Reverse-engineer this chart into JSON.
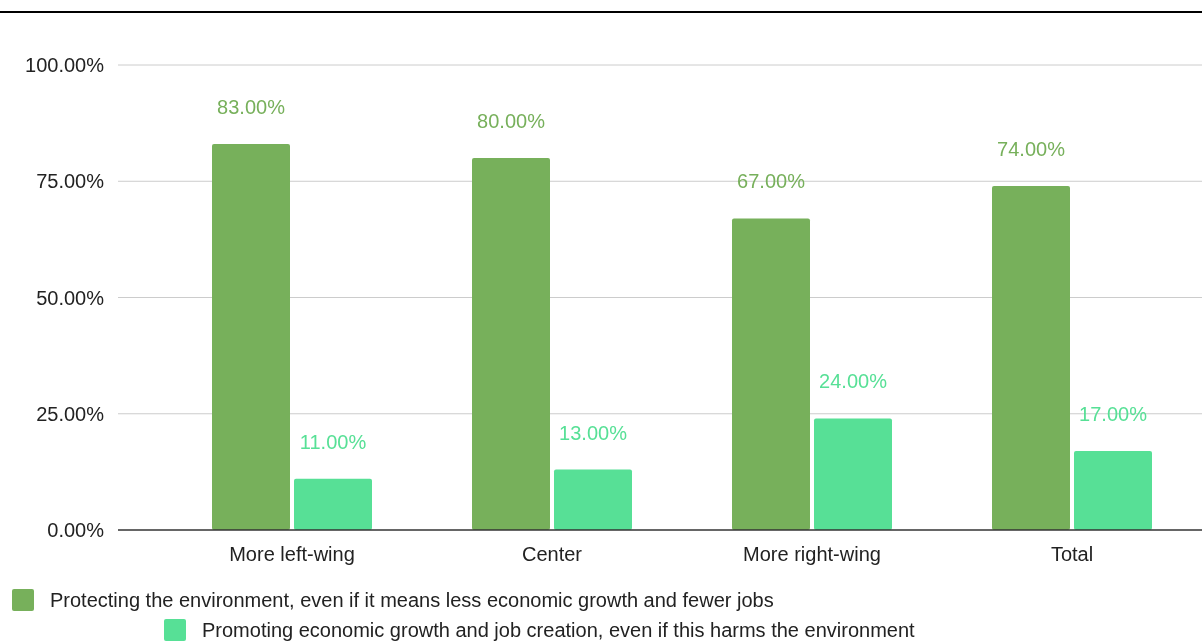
{
  "chart_data": {
    "type": "bar",
    "categories": [
      "More left-wing",
      "Center",
      "More right-wing",
      "Total"
    ],
    "series": [
      {
        "name": "Protecting the environment, even if it means less economic growth and fewer jobs",
        "color": "#77b05b",
        "values": [
          83,
          80,
          67,
          74
        ],
        "value_labels": [
          "83.00%",
          "80.00%",
          "67.00%",
          "74.00%"
        ]
      },
      {
        "name": "Promoting economic growth and job creation, even if this harms the environment",
        "color": "#57e096",
        "values": [
          11,
          13,
          24,
          17
        ],
        "value_labels": [
          "11.00%",
          "13.00%",
          "24.00%",
          "17.00%"
        ]
      }
    ],
    "ylim": [
      0,
      100
    ],
    "yticks": [
      {
        "value": 0,
        "label": "0.00%"
      },
      {
        "value": 25,
        "label": "25.00%"
      },
      {
        "value": 50,
        "label": "50.00%"
      },
      {
        "value": 75,
        "label": "75.00%"
      },
      {
        "value": 100,
        "label": "100.00%"
      }
    ],
    "grid": "y",
    "legend": "bottom"
  }
}
